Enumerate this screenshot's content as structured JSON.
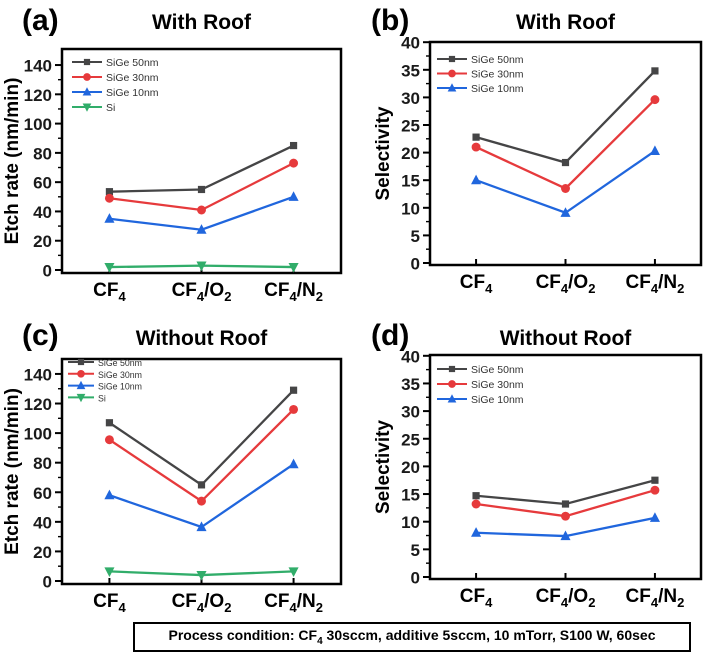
{
  "figure": {
    "caption": {
      "plain": "Process condition: CF4 30sccm, additive 5sccm, 10 mTorr, S100 W, 60sec",
      "segments": [
        {
          "t": "Process condition: CF"
        },
        {
          "t": "4",
          "sub": true
        },
        {
          "t": " 30sccm, additive 5sccm, 10 mTorr, S100 W, 60sec"
        }
      ]
    }
  },
  "colors": {
    "sige50": "#454546",
    "sige30": "#e63a3c",
    "sige10": "#2066dd",
    "si": "#31ad6a",
    "axis": "#000000",
    "tick_label": "#1a1a1a",
    "legend_text": "#333333"
  },
  "chart_data": [
    {
      "id": "a",
      "panel_label": "(a)",
      "title": "With Roof",
      "type": "line",
      "xlabel": "",
      "ylabel": "Etch rate (nm/min)",
      "ylim": [
        0,
        150
      ],
      "yticks_major": [
        0,
        20,
        40,
        60,
        80,
        100,
        120,
        140
      ],
      "yticks_minor": [
        10,
        30,
        50,
        70,
        90,
        110,
        130
      ],
      "categories": [
        "CF4",
        "CF4/O2",
        "CF4/N2"
      ],
      "legend_position": "top-left",
      "grid": false,
      "series": [
        {
          "name": "SiGe 50nm",
          "marker": "square",
          "color_key": "sige50",
          "values": [
            53.5,
            55,
            85
          ]
        },
        {
          "name": "SiGe 30nm",
          "marker": "circle",
          "color_key": "sige30",
          "values": [
            49,
            41,
            73
          ]
        },
        {
          "name": "SiGe 10nm",
          "marker": "triangle-up",
          "color_key": "sige10",
          "values": [
            35,
            27.5,
            50
          ]
        },
        {
          "name": "Si",
          "marker": "triangle-down",
          "color_key": "si",
          "values": [
            2,
            3,
            2
          ]
        }
      ]
    },
    {
      "id": "b",
      "panel_label": "(b)",
      "title": "With Roof",
      "type": "line",
      "xlabel": "",
      "ylabel": "Selectivity",
      "ylim": [
        0,
        40
      ],
      "yticks_major": [
        0,
        5,
        10,
        15,
        20,
        25,
        30,
        35,
        40
      ],
      "yticks_minor": [
        2.5,
        7.5,
        12.5,
        17.5,
        22.5,
        27.5,
        32.5,
        37.5
      ],
      "categories": [
        "CF4",
        "CF4/O2",
        "CF4/N2"
      ],
      "legend_position": "top-left",
      "grid": false,
      "series": [
        {
          "name": "SiGe 50nm",
          "marker": "square",
          "color_key": "sige50",
          "values": [
            22.8,
            18.2,
            34.8
          ]
        },
        {
          "name": "SiGe 30nm",
          "marker": "circle",
          "color_key": "sige30",
          "values": [
            21,
            13.5,
            29.6
          ]
        },
        {
          "name": "SiGe 10nm",
          "marker": "triangle-up",
          "color_key": "sige10",
          "values": [
            15,
            9.1,
            20.3
          ]
        }
      ]
    },
    {
      "id": "c",
      "panel_label": "(c)",
      "title": "Without Roof",
      "type": "line",
      "xlabel": "",
      "ylabel": "Etch rate (nm/min)",
      "ylim": [
        0,
        150
      ],
      "yticks_major": [
        0,
        20,
        40,
        60,
        80,
        100,
        120,
        140
      ],
      "yticks_minor": [
        10,
        30,
        50,
        70,
        90,
        110,
        130
      ],
      "categories": [
        "CF4",
        "CF4/O2",
        "CF4/N2"
      ],
      "legend_position": "top-left",
      "grid": false,
      "series": [
        {
          "name": "SiGe 50nm",
          "marker": "square",
          "color_key": "sige50",
          "values": [
            107,
            65,
            129
          ]
        },
        {
          "name": "SiGe 30nm",
          "marker": "circle",
          "color_key": "sige30",
          "values": [
            95.5,
            54,
            116
          ]
        },
        {
          "name": "SiGe 10nm",
          "marker": "triangle-up",
          "color_key": "sige10",
          "values": [
            58,
            36.5,
            79
          ]
        },
        {
          "name": "Si",
          "marker": "triangle-down",
          "color_key": "si",
          "values": [
            6.5,
            4,
            6.5
          ]
        }
      ]
    },
    {
      "id": "d",
      "panel_label": "(d)",
      "title": "Without Roof",
      "type": "line",
      "xlabel": "",
      "ylabel": "Selectivity",
      "ylim": [
        0,
        40
      ],
      "yticks_major": [
        0,
        5,
        10,
        15,
        20,
        25,
        30,
        35,
        40
      ],
      "yticks_minor": [
        2.5,
        7.5,
        12.5,
        17.5,
        22.5,
        27.5,
        32.5,
        37.5
      ],
      "categories": [
        "CF4",
        "CF4/O2",
        "CF4/N2"
      ],
      "legend_position": "top-left",
      "grid": false,
      "series": [
        {
          "name": "SiGe 50nm",
          "marker": "square",
          "color_key": "sige50",
          "values": [
            14.7,
            13.2,
            17.5
          ]
        },
        {
          "name": "SiGe 30nm",
          "marker": "circle",
          "color_key": "sige30",
          "values": [
            13.2,
            11,
            15.7
          ]
        },
        {
          "name": "SiGe 10nm",
          "marker": "triangle-up",
          "color_key": "sige10",
          "values": [
            8,
            7.4,
            10.7
          ]
        }
      ]
    }
  ]
}
